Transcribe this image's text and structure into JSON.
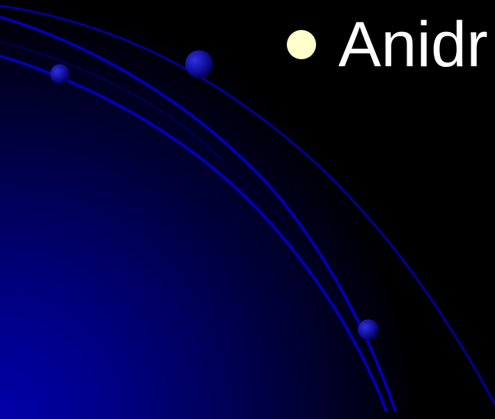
{
  "slide": {
    "bullet_text": "Anidr",
    "colors": {
      "background": "#000000",
      "gradient": "#0000a8",
      "orbit": "#0000c8",
      "bullet": "#ffffcc",
      "text": "#ffffff"
    }
  }
}
